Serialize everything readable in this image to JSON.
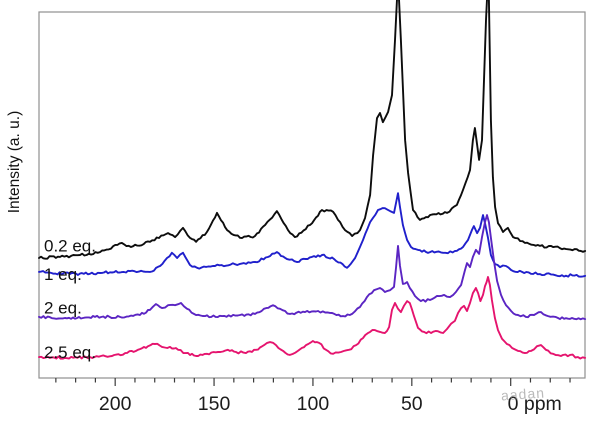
{
  "figure": {
    "background": "#ffffff",
    "watermark": "aadan"
  },
  "chart_data": {
    "type": "line",
    "title": "",
    "ylabel": "Intensity (a. u.)",
    "xlabel_unit": "ppm",
    "grid": false,
    "legend": "inline labels at left end of each trace",
    "x_axis": {
      "direction": "decreasing left-to-right",
      "range_ppm": [
        239,
        -37.5
      ],
      "major_ticks": [
        200,
        150,
        100,
        50,
        0
      ],
      "tick_labels": [
        "200",
        "150",
        "100",
        "50",
        "0 ppm"
      ],
      "minor_tick_step": 10
    },
    "y_axis": {
      "unit": "arbitrary intensity: 0 = bottom axis, 100 = top of plot box; tall peaks clip past top",
      "ticks": "none"
    },
    "axis_color": "#909090",
    "tick_text_color": "#1c1c1c",
    "series": [
      {
        "name": "0.2 eq.",
        "color": "#0d0d0d",
        "label_pos": [
          236.0,
          34.6
        ],
        "noise": 1.3,
        "points": [
          [
            238.5,
            32.8
          ],
          [
            227.9,
            33.1
          ],
          [
            217.8,
            33.6
          ],
          [
            207.7,
            34.4
          ],
          [
            196.6,
            36.9
          ],
          [
            192.0,
            35.8
          ],
          [
            182.4,
            37.2
          ],
          [
            173.3,
            39.6
          ],
          [
            169.7,
            38.5
          ],
          [
            165.7,
            41.0
          ],
          [
            162.2,
            38.3
          ],
          [
            159.1,
            37.2
          ],
          [
            153.6,
            39.9
          ],
          [
            148.5,
            45.1
          ],
          [
            143.4,
            40.4
          ],
          [
            136.9,
            38.3
          ],
          [
            129.3,
            38.8
          ],
          [
            124.2,
            41.8
          ],
          [
            118.2,
            45.6
          ],
          [
            112.6,
            40.4
          ],
          [
            109.1,
            38.5
          ],
          [
            101.5,
            41.8
          ],
          [
            95.4,
            45.9
          ],
          [
            89.8,
            45.4
          ],
          [
            83.8,
            40.4
          ],
          [
            80.2,
            38.8
          ],
          [
            76.2,
            40.4
          ],
          [
            73.7,
            43.7
          ],
          [
            71.1,
            50.0
          ],
          [
            69.6,
            60.9
          ],
          [
            67.6,
            71.0
          ],
          [
            66.1,
            72.4
          ],
          [
            64.6,
            69.9
          ],
          [
            62.0,
            72.7
          ],
          [
            60.0,
            77.3
          ],
          [
            58.5,
            92.3
          ],
          [
            57.5,
            103.5
          ],
          [
            56.5,
            103.5
          ],
          [
            55.5,
            92.3
          ],
          [
            53.4,
            65.0
          ],
          [
            51.9,
            56.0
          ],
          [
            49.4,
            45.9
          ],
          [
            45.9,
            43.2
          ],
          [
            40.8,
            44.5
          ],
          [
            32.2,
            45.1
          ],
          [
            27.2,
            47.3
          ],
          [
            24.1,
            51.4
          ],
          [
            20.6,
            56.8
          ],
          [
            19.1,
            65.0
          ],
          [
            18.1,
            68.3
          ],
          [
            16.0,
            59.6
          ],
          [
            14.5,
            65.0
          ],
          [
            13.5,
            81.4
          ],
          [
            12.5,
            97.8
          ],
          [
            12.0,
            103.5
          ],
          [
            11.0,
            103.5
          ],
          [
            10.0,
            70.5
          ],
          [
            9.0,
            54.9
          ],
          [
            7.9,
            46.7
          ],
          [
            6.4,
            42.3
          ],
          [
            3.9,
            39.9
          ],
          [
            1.4,
            41.0
          ],
          [
            -1.2,
            38.5
          ],
          [
            -7.2,
            36.9
          ],
          [
            -14.8,
            36.1
          ],
          [
            -24.9,
            35.5
          ],
          [
            -37.6,
            34.7
          ]
        ]
      },
      {
        "name": "1 eq.",
        "color": "#2020cc",
        "label_pos": [
          236.0,
          26.8
        ],
        "noise": 1.3,
        "points": [
          [
            238.5,
            29.0
          ],
          [
            222.9,
            28.4
          ],
          [
            207.7,
            28.7
          ],
          [
            192.5,
            29.2
          ],
          [
            182.4,
            29.0
          ],
          [
            177.3,
            30.6
          ],
          [
            173.8,
            32.8
          ],
          [
            171.3,
            34.2
          ],
          [
            168.7,
            32.8
          ],
          [
            165.7,
            34.2
          ],
          [
            162.2,
            30.9
          ],
          [
            158.6,
            30.1
          ],
          [
            149.5,
            30.6
          ],
          [
            139.4,
            31.1
          ],
          [
            129.3,
            31.7
          ],
          [
            121.7,
            33.3
          ],
          [
            118.2,
            34.4
          ],
          [
            113.1,
            32.5
          ],
          [
            108.1,
            31.7
          ],
          [
            100.5,
            33.1
          ],
          [
            95.4,
            33.6
          ],
          [
            89.3,
            32.5
          ],
          [
            82.8,
            30.1
          ],
          [
            78.7,
            32.8
          ],
          [
            74.7,
            37.7
          ],
          [
            71.1,
            42.6
          ],
          [
            67.1,
            45.9
          ],
          [
            63.6,
            46.4
          ],
          [
            61.0,
            45.6
          ],
          [
            59.0,
            45.1
          ],
          [
            58.0,
            47.8
          ],
          [
            57.0,
            50.5
          ],
          [
            56.0,
            46.7
          ],
          [
            54.5,
            41.8
          ],
          [
            52.4,
            37.7
          ],
          [
            50.4,
            35.8
          ],
          [
            46.9,
            35.0
          ],
          [
            40.8,
            34.4
          ],
          [
            34.2,
            34.2
          ],
          [
            28.2,
            34.7
          ],
          [
            24.1,
            35.8
          ],
          [
            21.6,
            37.7
          ],
          [
            19.6,
            40.4
          ],
          [
            18.6,
            41.5
          ],
          [
            17.0,
            39.6
          ],
          [
            15.5,
            41.0
          ],
          [
            14.0,
            44.5
          ],
          [
            13.0,
            42.3
          ],
          [
            11.5,
            38.3
          ],
          [
            10.0,
            33.6
          ],
          [
            7.9,
            31.1
          ],
          [
            5.4,
            30.3
          ],
          [
            2.4,
            30.6
          ],
          [
            -0.2,
            29.5
          ],
          [
            -5.7,
            29.0
          ],
          [
            -14.8,
            28.4
          ],
          [
            -25.9,
            28.1
          ],
          [
            -37.6,
            27.9
          ]
        ]
      },
      {
        "name": "2 eq.",
        "color": "#5b25c3",
        "label_pos": [
          236.0,
          17.6
        ],
        "noise": 1.2,
        "points": [
          [
            238.5,
            16.7
          ],
          [
            225.4,
            16.4
          ],
          [
            210.2,
            16.7
          ],
          [
            197.6,
            16.7
          ],
          [
            187.5,
            17.2
          ],
          [
            182.4,
            18.6
          ],
          [
            179.4,
            20.2
          ],
          [
            176.3,
            19.1
          ],
          [
            173.3,
            19.9
          ],
          [
            169.7,
            19.9
          ],
          [
            166.7,
            20.5
          ],
          [
            163.7,
            18.9
          ],
          [
            160.2,
            17.5
          ],
          [
            154.6,
            16.9
          ],
          [
            146.0,
            16.9
          ],
          [
            136.9,
            17.2
          ],
          [
            129.3,
            17.5
          ],
          [
            123.7,
            19.1
          ],
          [
            120.2,
            19.9
          ],
          [
            116.6,
            18.9
          ],
          [
            111.6,
            17.5
          ],
          [
            104.0,
            18.0
          ],
          [
            97.4,
            18.3
          ],
          [
            91.4,
            17.8
          ],
          [
            84.8,
            16.9
          ],
          [
            80.2,
            17.5
          ],
          [
            76.2,
            19.4
          ],
          [
            72.7,
            22.1
          ],
          [
            69.1,
            24.0
          ],
          [
            66.1,
            24.6
          ],
          [
            63.6,
            23.5
          ],
          [
            61.0,
            24.0
          ],
          [
            59.0,
            24.9
          ],
          [
            58.0,
            30.1
          ],
          [
            57.0,
            36.1
          ],
          [
            56.0,
            30.6
          ],
          [
            54.5,
            25.7
          ],
          [
            52.4,
            26.2
          ],
          [
            51.0,
            24.6
          ],
          [
            48.4,
            22.4
          ],
          [
            45.4,
            21.0
          ],
          [
            40.8,
            21.3
          ],
          [
            37.3,
            22.4
          ],
          [
            33.7,
            22.7
          ],
          [
            30.7,
            22.1
          ],
          [
            27.7,
            23.5
          ],
          [
            25.1,
            25.4
          ],
          [
            23.1,
            29.5
          ],
          [
            22.1,
            31.4
          ],
          [
            20.6,
            30.3
          ],
          [
            19.1,
            33.1
          ],
          [
            17.6,
            35.0
          ],
          [
            16.0,
            33.9
          ],
          [
            14.5,
            38.5
          ],
          [
            13.0,
            42.6
          ],
          [
            12.0,
            44.5
          ],
          [
            11.0,
            42.6
          ],
          [
            10.0,
            38.3
          ],
          [
            8.4,
            31.7
          ],
          [
            6.9,
            26.5
          ],
          [
            4.9,
            22.7
          ],
          [
            2.4,
            19.9
          ],
          [
            -0.2,
            18.3
          ],
          [
            -3.7,
            17.2
          ],
          [
            -7.7,
            16.7
          ],
          [
            -11.8,
            17.2
          ],
          [
            -15.3,
            18.0
          ],
          [
            -18.9,
            16.9
          ],
          [
            -23.9,
            16.4
          ],
          [
            -31.0,
            16.4
          ],
          [
            -37.6,
            16.1
          ]
        ]
      },
      {
        "name": "2.5 eq.",
        "color": "#e5146e",
        "label_pos": [
          236.0,
          5.4
        ],
        "noise": 1.2,
        "points": [
          [
            238.5,
            5.7
          ],
          [
            225.4,
            5.5
          ],
          [
            212.7,
            5.7
          ],
          [
            201.6,
            6.0
          ],
          [
            195.0,
            6.8
          ],
          [
            188.5,
            7.7
          ],
          [
            183.4,
            8.7
          ],
          [
            179.9,
            9.3
          ],
          [
            176.3,
            8.5
          ],
          [
            172.3,
            8.5
          ],
          [
            168.2,
            7.7
          ],
          [
            164.2,
            6.8
          ],
          [
            159.1,
            6.0
          ],
          [
            153.6,
            6.6
          ],
          [
            148.0,
            7.1
          ],
          [
            143.0,
            7.7
          ],
          [
            138.9,
            7.1
          ],
          [
            133.9,
            6.8
          ],
          [
            128.8,
            7.7
          ],
          [
            124.7,
            9.0
          ],
          [
            121.7,
            9.8
          ],
          [
            118.7,
            9.0
          ],
          [
            115.1,
            7.4
          ],
          [
            111.6,
            6.3
          ],
          [
            107.6,
            7.4
          ],
          [
            103.5,
            9.0
          ],
          [
            100.0,
            10.1
          ],
          [
            96.9,
            9.6
          ],
          [
            93.4,
            7.7
          ],
          [
            89.8,
            6.6
          ],
          [
            85.8,
            7.1
          ],
          [
            81.8,
            7.7
          ],
          [
            78.2,
            9.0
          ],
          [
            74.7,
            10.9
          ],
          [
            71.1,
            12.6
          ],
          [
            68.6,
            13.1
          ],
          [
            66.1,
            12.6
          ],
          [
            63.6,
            12.3
          ],
          [
            61.5,
            13.9
          ],
          [
            60.0,
            18.6
          ],
          [
            58.5,
            20.5
          ],
          [
            57.0,
            18.9
          ],
          [
            55.5,
            18.0
          ],
          [
            54.0,
            19.7
          ],
          [
            52.4,
            21.0
          ],
          [
            51.0,
            20.5
          ],
          [
            48.9,
            16.9
          ],
          [
            46.9,
            13.7
          ],
          [
            43.8,
            12.6
          ],
          [
            40.3,
            12.3
          ],
          [
            36.8,
            12.8
          ],
          [
            34.2,
            12.3
          ],
          [
            32.2,
            13.4
          ],
          [
            30.2,
            14.8
          ],
          [
            28.2,
            15.6
          ],
          [
            26.6,
            17.8
          ],
          [
            25.1,
            19.1
          ],
          [
            23.6,
            19.7
          ],
          [
            22.1,
            18.3
          ],
          [
            20.6,
            20.5
          ],
          [
            19.1,
            23.2
          ],
          [
            17.6,
            24.6
          ],
          [
            16.5,
            23.2
          ],
          [
            15.3,
            21.0
          ],
          [
            14.0,
            22.7
          ],
          [
            13.0,
            25.1
          ],
          [
            12.2,
            26.2
          ],
          [
            11.5,
            27.6
          ],
          [
            10.5,
            25.4
          ],
          [
            9.5,
            21.3
          ],
          [
            8.0,
            16.4
          ],
          [
            6.4,
            13.1
          ],
          [
            4.4,
            10.7
          ],
          [
            1.9,
            9.3
          ],
          [
            -0.7,
            8.2
          ],
          [
            -3.7,
            7.4
          ],
          [
            -7.2,
            6.8
          ],
          [
            -10.3,
            7.4
          ],
          [
            -13.3,
            8.7
          ],
          [
            -15.3,
            9.0
          ],
          [
            -17.8,
            7.7
          ],
          [
            -21.4,
            6.6
          ],
          [
            -25.4,
            6.0
          ],
          [
            -30.0,
            6.3
          ],
          [
            -34.0,
            5.7
          ],
          [
            -37.6,
            5.5
          ]
        ]
      }
    ]
  }
}
